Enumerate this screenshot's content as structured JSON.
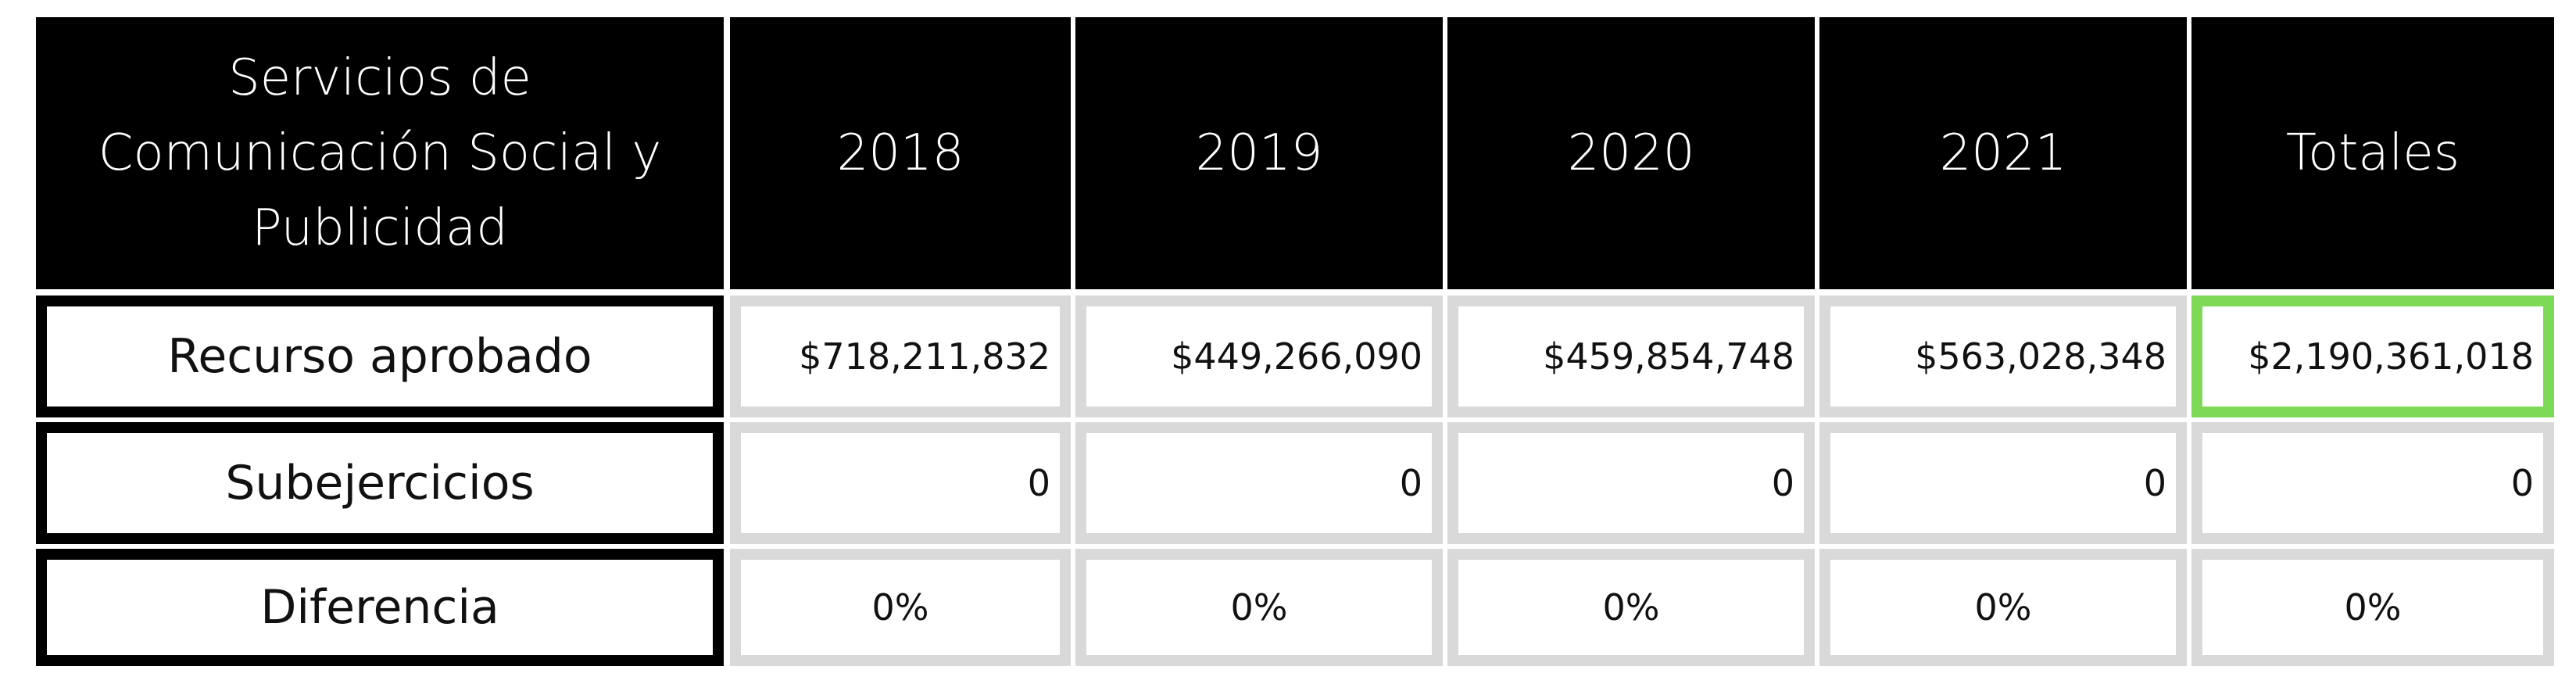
{
  "table": {
    "header": {
      "title": "Servicios de Comunicación Social y Publicidad",
      "title_lines": [
        "Servicios de",
        "Comunicación Social y",
        "Publicidad"
      ],
      "columns": [
        "2018",
        "2019",
        "2020",
        "2021",
        "Totales"
      ]
    },
    "rows": [
      {
        "label": "Recurso aprobado",
        "values": [
          "$718,211,832",
          "$449,266,090",
          "$459,854,748",
          "$563,028,348",
          "$2,190,361,018"
        ]
      },
      {
        "label": "Subejercicios",
        "values": [
          "0",
          "0",
          "0",
          "0",
          "0"
        ]
      },
      {
        "label": "Diferencia",
        "values": [
          "0%",
          "0%",
          "0%",
          "0%",
          "0%"
        ]
      }
    ],
    "colors": {
      "header_bg": "#000000",
      "header_text": "#ffffff",
      "cell_border": "#d9d9d9",
      "total_highlight": "#7ed957"
    }
  }
}
